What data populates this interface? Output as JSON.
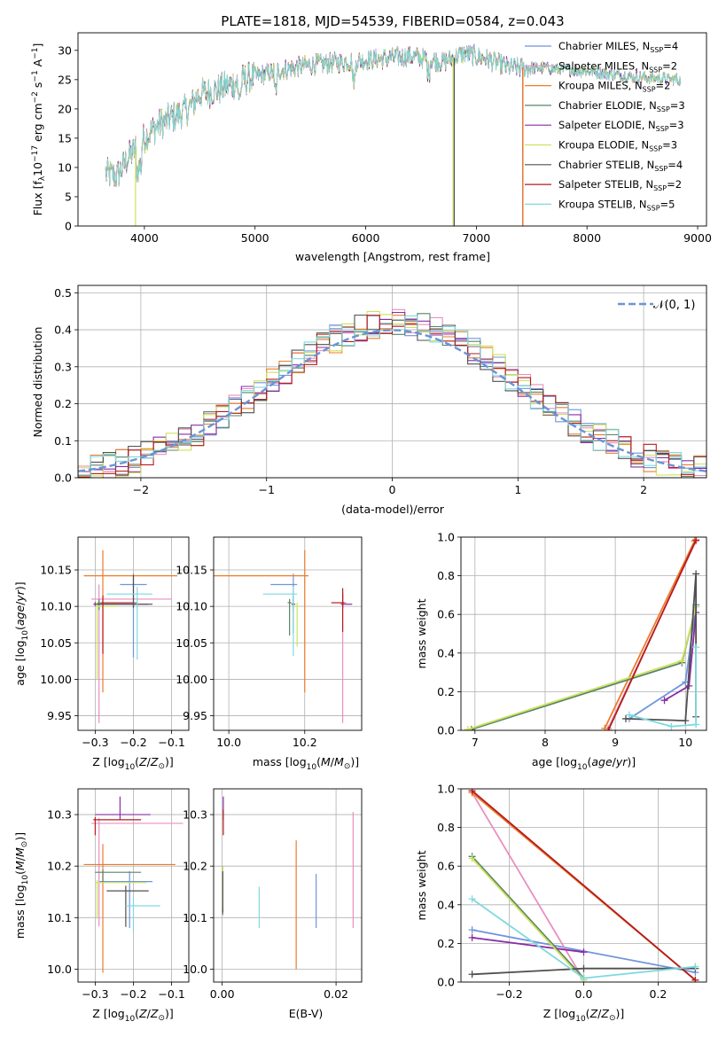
{
  "figure": {
    "title": "PLATE=1818, MJD=54539, FIBERID=0584, z=0.043"
  },
  "colors": {
    "Chabrier MILES": "#6f95db",
    "Salpeter MILES": "#e98fc0",
    "Kroupa MILES": "#ec7c2a",
    "Chabrier ELODIE": "#58836b",
    "Salpeter ELODIE": "#8a2ca3",
    "Kroupa ELODIE": "#cde25b",
    "Chabrier STELIB": "#505050",
    "Salpeter STELIB": "#b51c1c",
    "Kroupa STELIB": "#7fd9df",
    "normal": "#6b93d6",
    "grid": "#b0b0b0"
  },
  "chart_data": [
    {
      "id": "spectrum",
      "type": "line",
      "xlabel": "wavelength [Angstrom, rest frame]",
      "ylabel": "Flux [f_λ 10^-17 erg cm^-2 s^-1 A^-1]",
      "xlim": [
        3400,
        9080
      ],
      "ylim": [
        0,
        33
      ],
      "xticks": [
        4000,
        5000,
        6000,
        7000,
        8000,
        9000
      ],
      "yticks": [
        0,
        5,
        10,
        15,
        20,
        25,
        30
      ],
      "grid": false,
      "legend_position": "upper-right",
      "legend": [
        {
          "label": "Chabrier MILES",
          "nssp": "4"
        },
        {
          "label": "Salpeter MILES",
          "nssp": "2"
        },
        {
          "label": "Kroupa MILES",
          "nssp": "2"
        },
        {
          "label": "Chabrier ELODIE",
          "nssp": "3"
        },
        {
          "label": "Salpeter ELODIE",
          "nssp": "3"
        },
        {
          "label": "Kroupa ELODIE",
          "nssp": "3"
        },
        {
          "label": "Chabrier STELIB",
          "nssp": "4"
        },
        {
          "label": "Salpeter STELIB",
          "nssp": "2"
        },
        {
          "label": "Kroupa STELIB",
          "nssp": "5"
        }
      ],
      "continuum_points": [
        [
          3650,
          9
        ],
        [
          3750,
          8.5
        ],
        [
          3850,
          11.5
        ],
        [
          3950,
          14
        ],
        [
          4050,
          16
        ],
        [
          4150,
          17.5
        ],
        [
          4300,
          19
        ],
        [
          4400,
          20
        ],
        [
          4500,
          22.5
        ],
        [
          4700,
          23.5
        ],
        [
          4900,
          25
        ],
        [
          5200,
          26.5
        ],
        [
          5500,
          27.5
        ],
        [
          5800,
          28
        ],
        [
          6100,
          28.5
        ],
        [
          6400,
          29
        ],
        [
          6700,
          28
        ],
        [
          6900,
          29.5
        ],
        [
          7100,
          28.5
        ],
        [
          7300,
          27
        ],
        [
          7400,
          27
        ],
        [
          7600,
          27
        ],
        [
          8000,
          26.5
        ],
        [
          8400,
          25.5
        ],
        [
          8800,
          25
        ]
      ],
      "series_ranges": [
        [
          3650,
          7420
        ],
        [
          3650,
          8850
        ],
        [
          3650,
          7420
        ],
        [
          3650,
          8850
        ],
        [
          3650,
          8850
        ],
        [
          3650,
          8850
        ],
        [
          3650,
          8850
        ],
        [
          3650,
          7420
        ],
        [
          3650,
          8850
        ]
      ],
      "line_drops": [
        {
          "model": "Kroupa ELODIE",
          "x": 3920
        },
        {
          "model": "Kroupa ELODIE",
          "x": 6790
        },
        {
          "model": "Chabrier STELIB",
          "x": 6800
        },
        {
          "model": "Salpeter STELIB",
          "x": 7420
        },
        {
          "model": "Kroupa MILES",
          "x": 7420
        }
      ]
    },
    {
      "id": "residuals",
      "type": "histogram",
      "xlabel": "(data-model)/error",
      "ylabel": "Normed distribution",
      "xlim": [
        -2.5,
        2.5
      ],
      "ylim": [
        0,
        0.52
      ],
      "xticks": [
        -2,
        -1,
        0,
        1,
        2
      ],
      "yticks": [
        0.0,
        0.1,
        0.2,
        0.3,
        0.4,
        0.5
      ],
      "grid": true,
      "legend_position": "upper-right",
      "legend_label": "𝒩(0, 1)",
      "bin_width": 0.1,
      "bin_start": -2.5
    },
    {
      "id": "age_Z",
      "type": "errorbar",
      "xlabel": "Z [log10(Z/Z⊙)]",
      "ylabel": "age  [log10(age/yr)]",
      "xlim": [
        -0.345,
        -0.055
      ],
      "ylim": [
        9.93,
        10.195
      ],
      "xticks": [
        -0.3,
        -0.2,
        -0.1
      ],
      "yticks": [
        9.95,
        10.0,
        10.05,
        10.1,
        10.15
      ],
      "points": [
        {
          "model": "Chabrier MILES",
          "x": -0.2,
          "y": 10.13,
          "xerr": [
            0.035,
            0.035
          ],
          "yerr": [
            0.1,
            0.015
          ]
        },
        {
          "model": "Salpeter MILES",
          "x": -0.29,
          "y": 10.11,
          "xerr": [
            0.02,
            0.19
          ],
          "yerr": [
            0.17,
            0.02
          ]
        },
        {
          "model": "Kroupa MILES",
          "x": -0.28,
          "y": 10.142,
          "xerr": [
            0.05,
            0.195
          ],
          "yerr": [
            0.16,
            0.035
          ]
        },
        {
          "model": "Chabrier ELODIE",
          "x": -0.29,
          "y": 10.105,
          "xerr": [
            0.005,
            0.1
          ],
          "yerr": [
            0.01,
            0.005
          ]
        },
        {
          "model": "Salpeter ELODIE",
          "x": -0.3,
          "y": 10.103,
          "xerr": [
            0.005,
            0.14
          ],
          "yerr": [
            0.003,
            0.003
          ]
        },
        {
          "model": "Kroupa ELODIE",
          "x": -0.295,
          "y": 10.1,
          "xerr": [
            0.005,
            0.055
          ],
          "yerr": [
            0.1,
            0.005
          ]
        },
        {
          "model": "Chabrier STELIB",
          "x": -0.2,
          "y": 10.103,
          "xerr": [
            0.1,
            0.05
          ],
          "yerr": [
            0.005,
            0.04
          ]
        },
        {
          "model": "Salpeter STELIB",
          "x": -0.28,
          "y": 10.105,
          "xerr": [
            0.005,
            0.08
          ],
          "yerr": [
            0.07,
            0.01
          ]
        },
        {
          "model": "Kroupa STELIB",
          "x": -0.19,
          "y": 10.117,
          "xerr": [
            0.08,
            0.04
          ],
          "yerr": [
            0.09,
            0.01
          ]
        }
      ]
    },
    {
      "id": "age_mass",
      "type": "errorbar",
      "xlabel": "mass [log10(M/M⊙)]",
      "ylabel": "",
      "xlim": [
        9.96,
        10.35
      ],
      "ylim": [
        9.93,
        10.195
      ],
      "xticks": [
        10.0,
        10.2
      ],
      "yticks": [
        9.95,
        10.0,
        10.05,
        10.1,
        10.15
      ],
      "points": [
        {
          "model": "Chabrier MILES",
          "x": 10.17,
          "y": 10.13,
          "xerr": [
            0.06,
            0.01
          ],
          "yerr": [
            0.035,
            0.015
          ]
        },
        {
          "model": "Salpeter MILES",
          "x": 10.3,
          "y": 10.105,
          "xerr": [
            0.005,
            0.01
          ],
          "yerr": [
            0.165,
            0.015
          ]
        },
        {
          "model": "Kroupa MILES",
          "x": 10.2,
          "y": 10.142,
          "xerr": [
            0.27,
            0.01
          ],
          "yerr": [
            0.16,
            0.035
          ]
        },
        {
          "model": "Chabrier ELODIE",
          "x": 10.16,
          "y": 10.105,
          "xerr": [
            0.005,
            0.005
          ],
          "yerr": [
            0.045,
            0.005
          ]
        },
        {
          "model": "Salpeter ELODIE",
          "x": 10.3,
          "y": 10.103,
          "xerr": [
            0.005,
            0.025
          ],
          "yerr": [
            0.005,
            0.015
          ]
        },
        {
          "model": "Kroupa ELODIE",
          "x": 10.18,
          "y": 10.1,
          "xerr": [
            0.005,
            0.005
          ],
          "yerr": [
            0.055,
            0.005
          ]
        },
        {
          "model": "Chabrier STELIB",
          "x": 10.17,
          "y": 10.103,
          "xerr": [
            0.005,
            0.005
          ],
          "yerr": [
            0.04,
            0.01
          ]
        },
        {
          "model": "Salpeter STELIB",
          "x": 10.3,
          "y": 10.105,
          "xerr": [
            0.03,
            0.005
          ],
          "yerr": [
            0.04,
            0.02
          ]
        },
        {
          "model": "Kroupa STELIB",
          "x": 10.17,
          "y": 10.117,
          "xerr": [
            0.08,
            0.01
          ],
          "yerr": [
            0.085,
            0.01
          ]
        }
      ]
    },
    {
      "id": "weight_age",
      "type": "line",
      "xlabel": "age  [log10(age/yr)]",
      "ylabel": "mass weight",
      "xlim": [
        6.8,
        10.3
      ],
      "ylim": [
        0.0,
        1.0
      ],
      "xticks": [
        7,
        8,
        9,
        10
      ],
      "yticks": [
        0.0,
        0.2,
        0.4,
        0.6,
        0.8,
        1.0
      ],
      "grid": true,
      "series": [
        {
          "model": "Chabrier MILES",
          "x": [
            9.2,
            10.0,
            10.15
          ],
          "y": [
            0.06,
            0.25,
            0.65
          ]
        },
        {
          "model": "Salpeter MILES",
          "x": [
            8.9,
            10.15
          ],
          "y": [
            0.01,
            0.98
          ]
        },
        {
          "model": "Kroupa MILES",
          "x": [
            8.85,
            10.13
          ],
          "y": [
            0.01,
            0.98
          ]
        },
        {
          "model": "Chabrier ELODIE",
          "x": [
            6.95,
            9.95,
            10.15
          ],
          "y": [
            0.005,
            0.35,
            0.64
          ]
        },
        {
          "model": "Salpeter ELODIE",
          "x": [
            9.7,
            10.05,
            10.15
          ],
          "y": [
            0.155,
            0.23,
            0.61
          ]
        },
        {
          "model": "Kroupa ELODIE",
          "x": [
            6.9,
            9.95,
            10.15
          ],
          "y": [
            0.005,
            0.36,
            0.64
          ]
        },
        {
          "model": "Chabrier STELIB",
          "x": [
            9.15,
            10.0,
            10.15,
            10.15
          ],
          "y": [
            0.06,
            0.05,
            0.81,
            0.07
          ]
        },
        {
          "model": "Salpeter STELIB",
          "x": [
            8.9,
            10.15
          ],
          "y": [
            0.0,
            0.985
          ]
        },
        {
          "model": "Kroupa STELIB",
          "x": [
            9.2,
            9.8,
            10.15,
            10.15
          ],
          "y": [
            0.08,
            0.02,
            0.03,
            0.43
          ]
        }
      ]
    },
    {
      "id": "mass_Z",
      "type": "errorbar",
      "xlabel": "Z [log10(Z/Z⊙)]",
      "ylabel": "mass [log10(M/M⊙)]",
      "xlim": [
        -0.345,
        -0.055
      ],
      "ylim": [
        9.975,
        10.35
      ],
      "xticks": [
        -0.3,
        -0.2,
        -0.1
      ],
      "yticks": [
        10.0,
        10.1,
        10.2,
        10.3
      ],
      "points": [
        {
          "model": "Chabrier MILES",
          "x": -0.21,
          "y": 10.17,
          "xerr": [
            0.08,
            0.06
          ],
          "yerr": [
            0.09,
            0.02
          ]
        },
        {
          "model": "Salpeter MILES",
          "x": -0.29,
          "y": 10.283,
          "xerr": [
            0.02,
            0.22
          ],
          "yerr": [
            0.2,
            0.01
          ]
        },
        {
          "model": "Kroupa MILES",
          "x": -0.28,
          "y": 10.203,
          "xerr": [
            0.05,
            0.19
          ],
          "yerr": [
            0.21,
            0.04
          ]
        },
        {
          "model": "Chabrier ELODIE",
          "x": -0.28,
          "y": 10.188,
          "xerr": [
            0.02,
            0.1
          ],
          "yerr": [
            0.02,
            0.005
          ]
        },
        {
          "model": "Salpeter ELODIE",
          "x": -0.235,
          "y": 10.3,
          "xerr": [
            0.065,
            0.08
          ],
          "yerr": [
            0.01,
            0.035
          ]
        },
        {
          "model": "Kroupa ELODIE",
          "x": -0.295,
          "y": 10.168,
          "xerr": [
            0.005,
            0.13
          ],
          "yerr": [
            0.07,
            0.005
          ]
        },
        {
          "model": "Chabrier STELIB",
          "x": -0.22,
          "y": 10.152,
          "xerr": [
            0.05,
            0.06
          ],
          "yerr": [
            0.07,
            0.01
          ]
        },
        {
          "model": "Salpeter STELIB",
          "x": -0.3,
          "y": 10.29,
          "xerr": [
            0.005,
            0.12
          ],
          "yerr": [
            0.03,
            0.005
          ]
        },
        {
          "model": "Kroupa STELIB",
          "x": -0.2,
          "y": 10.123,
          "xerr": [
            0.02,
            0.07
          ],
          "yerr": [
            0.05,
            0.02
          ]
        }
      ]
    },
    {
      "id": "mass_EBV",
      "type": "errorbar",
      "xlabel": "E(B-V)",
      "ylabel": "",
      "xlim": [
        -0.0015,
        0.0245
      ],
      "ylim": [
        9.975,
        10.35
      ],
      "xticks": [
        0.0,
        0.02
      ],
      "yticks": [
        10.0,
        10.1,
        10.2,
        10.3
      ],
      "points": [
        {
          "model": "Chabrier MILES",
          "x": 0.0165,
          "y": 10.13,
          "xerr": [
            0,
            0
          ],
          "yerr": [
            0.05,
            0.055
          ]
        },
        {
          "model": "Salpeter MILES",
          "x": 0.023,
          "y": 10.2,
          "xerr": [
            0,
            0
          ],
          "yerr": [
            0.12,
            0.105
          ]
        },
        {
          "model": "Kroupa MILES",
          "x": 0.013,
          "y": 10.13,
          "xerr": [
            0,
            0
          ],
          "yerr": [
            0.13,
            0.12
          ]
        },
        {
          "model": "Chabrier ELODIE",
          "x": 0.0001,
          "y": 10.15,
          "xerr": [
            0,
            0
          ],
          "yerr": [
            0.045,
            0.05
          ]
        },
        {
          "model": "Salpeter ELODIE",
          "x": 0.0002,
          "y": 10.31,
          "xerr": [
            0,
            0
          ],
          "yerr": [
            0.02,
            0.025
          ]
        },
        {
          "model": "Kroupa ELODIE",
          "x": 0.0001,
          "y": 10.16,
          "xerr": [
            0,
            0
          ],
          "yerr": [
            0.04,
            0.04
          ]
        },
        {
          "model": "Chabrier STELIB",
          "x": 0.0001,
          "y": 10.15,
          "xerr": [
            0,
            0
          ],
          "yerr": [
            0.04,
            0.04
          ]
        },
        {
          "model": "Salpeter STELIB",
          "x": 0.0002,
          "y": 10.29,
          "xerr": [
            0,
            0
          ],
          "yerr": [
            0.03,
            0.02
          ]
        },
        {
          "model": "Kroupa STELIB",
          "x": 0.0065,
          "y": 10.12,
          "xerr": [
            0,
            0
          ],
          "yerr": [
            0.04,
            0.04
          ]
        }
      ]
    },
    {
      "id": "weight_Z",
      "type": "line",
      "xlabel": "Z [log10(Z/Z⊙)]",
      "ylabel": "mass weight",
      "xlim": [
        -0.33,
        0.33
      ],
      "ylim": [
        0.0,
        1.0
      ],
      "xticks": [
        -0.2,
        0.0,
        0.2
      ],
      "yticks": [
        0.0,
        0.2,
        0.4,
        0.6,
        0.8,
        1.0
      ],
      "grid": true,
      "series": [
        {
          "model": "Chabrier MILES",
          "x": [
            -0.3,
            0.3
          ],
          "y": [
            0.27,
            0.05
          ]
        },
        {
          "model": "Salpeter MILES",
          "x": [
            -0.3,
            0.0
          ],
          "y": [
            0.98,
            0.01
          ]
        },
        {
          "model": "Kroupa MILES",
          "x": [
            -0.3,
            0.3
          ],
          "y": [
            0.98,
            0.01
          ]
        },
        {
          "model": "Chabrier ELODIE",
          "x": [
            -0.3,
            0.0
          ],
          "y": [
            0.65,
            0.02
          ]
        },
        {
          "model": "Salpeter ELODIE",
          "x": [
            -0.3,
            0.0
          ],
          "y": [
            0.23,
            0.155
          ]
        },
        {
          "model": "Kroupa ELODIE",
          "x": [
            -0.3,
            0.0
          ],
          "y": [
            0.64,
            0.01
          ]
        },
        {
          "model": "Chabrier STELIB",
          "x": [
            -0.3,
            0.0,
            0.3
          ],
          "y": [
            0.04,
            0.07,
            0.07
          ]
        },
        {
          "model": "Salpeter STELIB",
          "x": [
            -0.3,
            0.3
          ],
          "y": [
            0.99,
            0.01
          ]
        },
        {
          "model": "Kroupa STELIB",
          "x": [
            -0.3,
            0.0,
            0.3
          ],
          "y": [
            0.43,
            0.02,
            0.08
          ]
        }
      ]
    }
  ]
}
